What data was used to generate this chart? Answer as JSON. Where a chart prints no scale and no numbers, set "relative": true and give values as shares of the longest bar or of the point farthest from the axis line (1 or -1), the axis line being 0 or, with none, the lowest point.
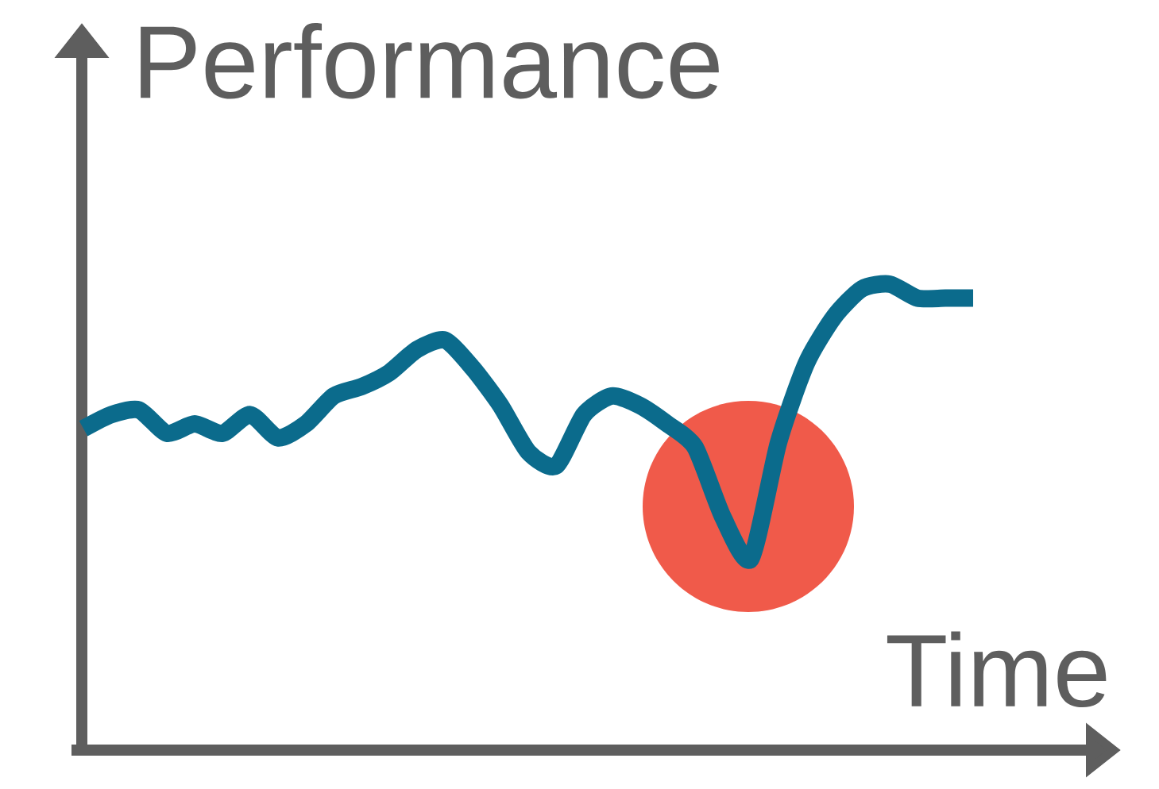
{
  "chart_data": {
    "type": "line",
    "relative": true,
    "xlabel": "Time",
    "ylabel": "Performance",
    "categories": [
      null,
      null,
      null,
      null,
      null,
      null,
      null,
      null,
      null,
      null,
      null,
      null,
      null,
      null,
      null,
      null,
      null,
      null,
      null,
      null,
      null,
      null,
      null,
      null,
      null,
      null,
      null,
      null,
      null,
      null,
      null,
      null,
      null
    ],
    "series": [
      {
        "color": "#0b6b8c",
        "values": [
          0.69,
          0.72,
          0.73,
          0.68,
          0.7,
          0.68,
          0.72,
          0.67,
          0.7,
          0.76,
          0.78,
          0.81,
          0.86,
          0.88,
          0.82,
          0.74,
          0.64,
          0.61,
          0.72,
          0.76,
          0.74,
          0.7,
          0.65,
          0.5,
          0.41,
          0.66,
          0.83,
          0.93,
          0.99,
          1,
          0.97,
          0.97,
          0.97
        ]
      }
    ]
  }
}
